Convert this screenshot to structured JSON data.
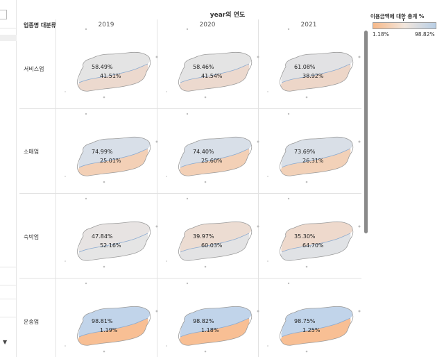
{
  "view": {
    "column_title": "year의 연도",
    "row_header_title": "업종명 대분류",
    "years": [
      "2019",
      "2020",
      "2021"
    ],
    "rows": [
      {
        "label": "서비스업",
        "cells": [
          {
            "upper": "58.49%",
            "lower": "41.51%",
            "upper_color": "#e4e4e4",
            "lower_color": "#ecd9ce"
          },
          {
            "upper": "58.46%",
            "lower": "41.54%",
            "upper_color": "#e4e4e4",
            "lower_color": "#ecd9ce"
          },
          {
            "upper": "61.08%",
            "lower": "38.92%",
            "upper_color": "#e2e2e4",
            "lower_color": "#edd6c8"
          }
        ]
      },
      {
        "label": "소매업",
        "cells": [
          {
            "upper": "74.99%",
            "lower": "25.01%",
            "upper_color": "#d8dfe8",
            "lower_color": "#f3d0b6"
          },
          {
            "upper": "74.40%",
            "lower": "25.60%",
            "upper_color": "#d8dfe8",
            "lower_color": "#f3d0b6"
          },
          {
            "upper": "73.69%",
            "lower": "26.31%",
            "upper_color": "#d9dfe7",
            "lower_color": "#f2d1b8"
          }
        ]
      },
      {
        "label": "숙박업",
        "cells": [
          {
            "upper": "47.84%",
            "lower": "52.16%",
            "upper_color": "#e7e3e2",
            "lower_color": "#e5e5e5"
          },
          {
            "upper": "39.97%",
            "lower": "60.03%",
            "upper_color": "#ecdcd2",
            "lower_color": "#e3e3e4"
          },
          {
            "upper": "35.30%",
            "lower": "64.70%",
            "upper_color": "#eed9cc",
            "lower_color": "#e0e2e5"
          }
        ]
      },
      {
        "label": "운송업",
        "cells": [
          {
            "upper": "98.81%",
            "lower": "1.19%",
            "upper_color": "#c1d4ea",
            "lower_color": "#f8bf94"
          },
          {
            "upper": "98.82%",
            "lower": "1.18%",
            "upper_color": "#c1d4ea",
            "lower_color": "#f8bf94"
          },
          {
            "upper": "98.75%",
            "lower": "1.25%",
            "upper_color": "#c1d4ea",
            "lower_color": "#f8bf94"
          }
        ]
      }
    ]
  },
  "legend": {
    "title": "이용금액에 대한 총계 %",
    "min_label": "1.18%",
    "max_label": "98.82%",
    "low_color": "#f6b98a",
    "high_color": "#b9cfe6"
  }
}
